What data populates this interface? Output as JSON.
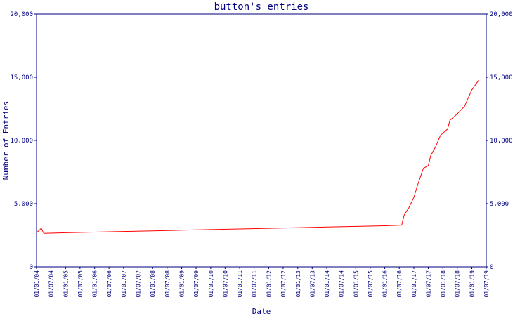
{
  "chart_data": {
    "type": "line",
    "title": "button's entries",
    "x_label": "Date",
    "y_label": "Number of Entries",
    "x": [
      "01/01/04",
      "01/03/04",
      "01/04/04",
      "01/01/05",
      "01/01/06",
      "01/01/07",
      "01/01/08",
      "01/01/09",
      "01/01/10",
      "01/01/11",
      "01/01/12",
      "01/01/13",
      "01/01/14",
      "01/01/15",
      "01/01/16",
      "01/08/16",
      "01/09/16",
      "01/11/16",
      "01/01/17",
      "01/03/17",
      "01/05/17",
      "01/07/17",
      "01/08/17",
      "01/10/17",
      "01/12/17",
      "01/03/18",
      "01/04/18",
      "01/07/18",
      "01/10/18",
      "01/01/19",
      "01/04/19"
    ],
    "series": [
      {
        "name": "entries",
        "color": "#ff0000",
        "values": [
          2700,
          3050,
          2650,
          2700,
          2750,
          2800,
          2850,
          2900,
          2950,
          3000,
          3050,
          3100,
          3150,
          3200,
          3250,
          3300,
          4100,
          4700,
          5500,
          6700,
          7800,
          8000,
          8800,
          9500,
          10400,
          10900,
          11600,
          12100,
          12700,
          14000,
          14800
        ]
      }
    ],
    "xlim": [
      "01/01/04",
      "01/07/19"
    ],
    "xticks": [
      "01/01/04",
      "01/07/04",
      "01/01/05",
      "01/07/05",
      "01/01/06",
      "01/07/06",
      "01/01/07",
      "01/07/07",
      "01/01/08",
      "01/07/08",
      "01/01/09",
      "01/07/09",
      "01/01/10",
      "01/07/10",
      "01/01/11",
      "01/07/11",
      "01/01/12",
      "01/07/12",
      "01/01/13",
      "01/07/13",
      "01/01/14",
      "01/07/14",
      "01/01/15",
      "01/07/15",
      "01/01/16",
      "01/07/16",
      "01/01/17",
      "01/07/17",
      "01/01/18",
      "01/07/18",
      "01/01/19",
      "01/07/19"
    ],
    "ylim": [
      0,
      20000
    ],
    "yticks": [
      0,
      {
        "value": 5000,
        "label": "5,000"
      },
      {
        "value": 10000,
        "label": "10,000"
      },
      {
        "value": 15000,
        "label": "15,000"
      },
      {
        "value": 20000,
        "label": "20,000"
      }
    ],
    "y2lim": [
      0,
      20000
    ],
    "y2ticks": [
      0,
      {
        "value": 5000,
        "label": "5,000"
      },
      {
        "value": 10000,
        "label": "10,000"
      },
      {
        "value": 15000,
        "label": "15,000"
      },
      {
        "value": 20000,
        "label": "20,000"
      }
    ]
  }
}
